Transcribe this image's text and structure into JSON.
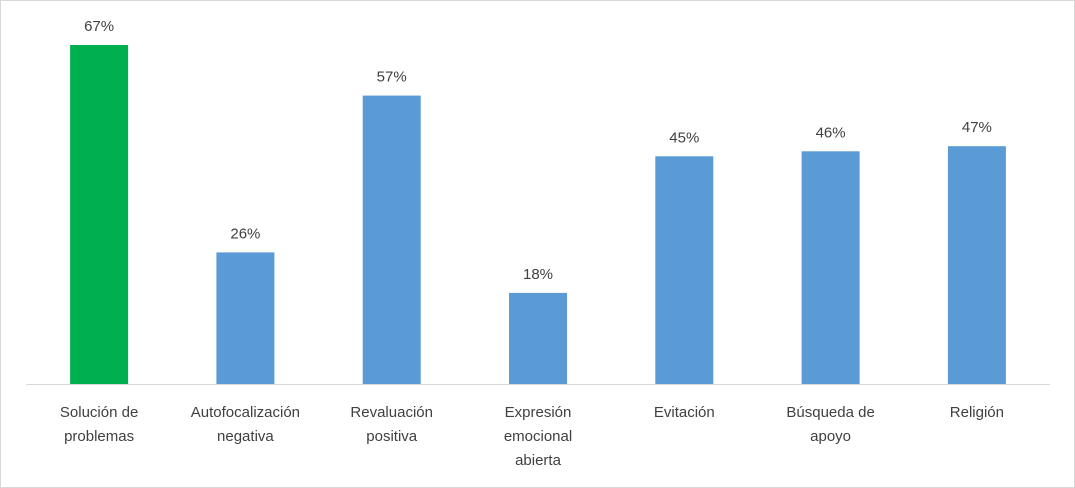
{
  "chart_data": {
    "type": "bar",
    "categories": [
      [
        "Solución de",
        "problemas"
      ],
      [
        "Autofocalización",
        "negativa"
      ],
      [
        "Revaluación",
        "positiva"
      ],
      [
        "Expresión",
        "emocional",
        "abierta"
      ],
      [
        "Evitación"
      ],
      [
        "Búsqueda de",
        "apoyo"
      ],
      [
        "Religión"
      ]
    ],
    "values": [
      67,
      26,
      57,
      18,
      45,
      46,
      47
    ],
    "data_labels": [
      "67%",
      "26%",
      "57%",
      "18%",
      "45%",
      "46%",
      "47%"
    ],
    "colors": [
      "#00b050",
      "#5b9bd5",
      "#5b9bd5",
      "#5b9bd5",
      "#5b9bd5",
      "#5b9bd5",
      "#5b9bd5"
    ],
    "axis_color": "#d9d9d9",
    "label_color": "#404040",
    "ylim": [
      0,
      67
    ],
    "unit": "%",
    "grid": false,
    "legend": "none",
    "title": "",
    "xlabel": "",
    "ylabel": ""
  }
}
